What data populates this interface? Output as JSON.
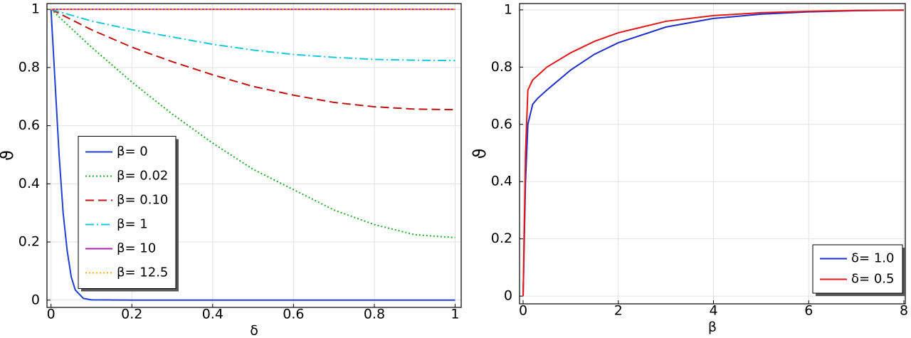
{
  "chart_data": [
    {
      "type": "line",
      "xlabel": "δ",
      "ylabel": "ϑ",
      "x": [
        0,
        0.01,
        0.02,
        0.03,
        0.04,
        0.05,
        0.06,
        0.08,
        0.1,
        0.2,
        0.3,
        0.4,
        0.5,
        0.6,
        0.7,
        0.8,
        0.9,
        1
      ],
      "series": [
        {
          "name": "β= 0",
          "color": "#1f3fd0",
          "dash": "solid",
          "values": [
            1,
            0.75,
            0.5,
            0.3,
            0.17,
            0.08,
            0.035,
            0.006,
            0.001,
            0,
            0,
            0,
            0,
            0,
            0,
            0,
            0,
            0
          ]
        },
        {
          "name": "β= 0.02",
          "color": "#22a82a",
          "dash": "dotted",
          "values": [
            1,
            0.987,
            0.974,
            0.961,
            0.948,
            0.935,
            0.922,
            0.896,
            0.87,
            0.75,
            0.64,
            0.54,
            0.45,
            0.38,
            0.31,
            0.26,
            0.225,
            0.215
          ]
        },
        {
          "name": "β= 0.10",
          "color": "#c01010",
          "dash": "dashed",
          "values": [
            1,
            0.993,
            0.986,
            0.979,
            0.972,
            0.965,
            0.958,
            0.944,
            0.93,
            0.87,
            0.82,
            0.775,
            0.735,
            0.705,
            0.68,
            0.665,
            0.657,
            0.655
          ]
        },
        {
          "name": "β= 1",
          "color": "#18c8d8",
          "dash": "dashdot",
          "values": [
            1,
            0.996,
            0.992,
            0.988,
            0.984,
            0.98,
            0.976,
            0.968,
            0.96,
            0.93,
            0.905,
            0.88,
            0.86,
            0.845,
            0.835,
            0.828,
            0.825,
            0.824
          ]
        },
        {
          "name": "β= 10",
          "color": "#b020b0",
          "dash": "solid",
          "values": [
            1,
            1,
            1,
            1,
            1,
            1,
            1,
            1,
            1,
            1,
            1,
            1,
            1,
            1,
            1,
            1,
            1,
            1
          ]
        },
        {
          "name": "β= 12.5",
          "color": "#f0b000",
          "dash": "dotted",
          "values": [
            1,
            1,
            1,
            1,
            1,
            1,
            1,
            1,
            1,
            1,
            1,
            1,
            1,
            1,
            1,
            1,
            1,
            1
          ]
        }
      ],
      "xlim": [
        -0.01,
        1.015
      ],
      "ylim": [
        -0.025,
        1.02
      ],
      "xticks": [
        0,
        0.2,
        0.4,
        0.6,
        0.8,
        1
      ],
      "yticks": [
        0,
        0.2,
        0.4,
        0.6,
        0.8,
        1
      ],
      "grid": true,
      "legend_position": "center left"
    },
    {
      "type": "line",
      "xlabel": "β",
      "ylabel": "ϑ",
      "x": [
        0,
        0.05,
        0.1,
        0.2,
        0.3,
        0.5,
        1,
        1.5,
        2,
        3,
        4,
        5,
        6,
        7,
        8
      ],
      "series": [
        {
          "name": "δ= 1.0",
          "color": "#1f2fc8",
          "dash": "solid",
          "values": [
            0,
            0.4,
            0.6,
            0.67,
            0.69,
            0.72,
            0.79,
            0.845,
            0.885,
            0.94,
            0.97,
            0.985,
            0.993,
            0.997,
            0.999
          ]
        },
        {
          "name": "δ= 0.5",
          "color": "#e01818",
          "dash": "solid",
          "values": [
            0,
            0.5,
            0.72,
            0.755,
            0.77,
            0.8,
            0.85,
            0.89,
            0.92,
            0.96,
            0.98,
            0.99,
            0.995,
            0.998,
            0.999
          ]
        }
      ],
      "xlim": [
        -0.075,
        8.03
      ],
      "ylim": [
        -0.027,
        1.022
      ],
      "xticks": [
        0,
        2,
        4,
        6,
        8
      ],
      "yticks": [
        0,
        0.2,
        0.4,
        0.6,
        0.8,
        1
      ],
      "grid": true,
      "legend_position": "lower right"
    }
  ]
}
